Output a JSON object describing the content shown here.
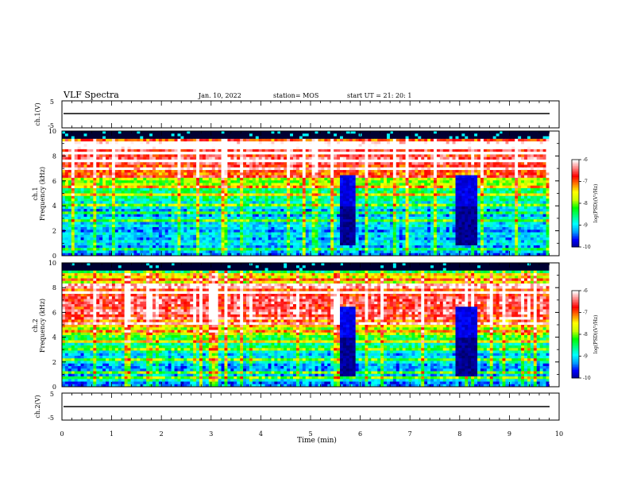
{
  "header": {
    "title": "VLF Spectra",
    "date": "Jan. 10, 2022",
    "station": "station= MOS",
    "start": "start  UT =   21: 20: 1"
  },
  "colors": {
    "background": "#ffffff",
    "axes": "#000000",
    "colormap": [
      "#000000",
      "#00008b",
      "#0000ff",
      "#00a0ff",
      "#00ffff",
      "#00ff80",
      "#00ff00",
      "#c8ff00",
      "#ffff00",
      "#ff8000",
      "#ff0000",
      "#ff8080",
      "#ffffff"
    ]
  },
  "chart_data": [
    {
      "type": "line",
      "panel": "ch1-waveform",
      "ylabel": "ch.1(V)",
      "ylim": [
        -5,
        5
      ],
      "yticks": [
        "5",
        "-5"
      ],
      "x": [
        0,
        9.8
      ],
      "values": [
        0,
        0
      ]
    },
    {
      "type": "heatmap",
      "panel": "ch1-spectrogram",
      "ylabel_top": "ch.1",
      "ylabel": "Frequency (kHz)",
      "ylim": [
        0,
        10
      ],
      "yticks": [
        "0",
        "2",
        "4",
        "6",
        "8",
        "10"
      ],
      "xlim": [
        0,
        9.8
      ],
      "colorbar": {
        "label": "log(PSD)(V²/Hz)",
        "range": [
          -10,
          -6
        ],
        "ticks": [
          "-6",
          "-7",
          "-8",
          "-9",
          "-10"
        ]
      },
      "band_peak_khz": 8.0,
      "quiet_intervals_min": [
        [
          5.6,
          5.85
        ],
        [
          7.95,
          8.3
        ]
      ]
    },
    {
      "type": "heatmap",
      "panel": "ch2-spectrogram",
      "ylabel_top": "ch.2",
      "ylabel": "Frequency (kHz)",
      "ylim": [
        0,
        10
      ],
      "yticks": [
        "0",
        "2",
        "4",
        "6",
        "8",
        "10"
      ],
      "xlim": [
        0,
        9.8
      ],
      "colorbar": {
        "label": "log(PSD)(V²/Hz)",
        "range": [
          -10,
          -6
        ],
        "ticks": [
          "-6",
          "-7",
          "-8",
          "-9",
          "-10"
        ]
      },
      "band_peak_khz": 6.7,
      "quiet_intervals_min": [
        [
          5.6,
          5.85
        ],
        [
          7.95,
          8.3
        ]
      ]
    },
    {
      "type": "line",
      "panel": "ch2-waveform",
      "ylabel": "ch.2(V)",
      "ylim": [
        -5,
        5
      ],
      "yticks": [
        "5",
        "-5"
      ],
      "x": [
        0,
        9.8
      ],
      "values": [
        0,
        0
      ]
    }
  ],
  "xaxis": {
    "label": "Time (min)",
    "ticks": [
      "0",
      "1",
      "2",
      "3",
      "4",
      "5",
      "6",
      "7",
      "8",
      "9",
      "10"
    ],
    "xlim": [
      0,
      10
    ]
  }
}
